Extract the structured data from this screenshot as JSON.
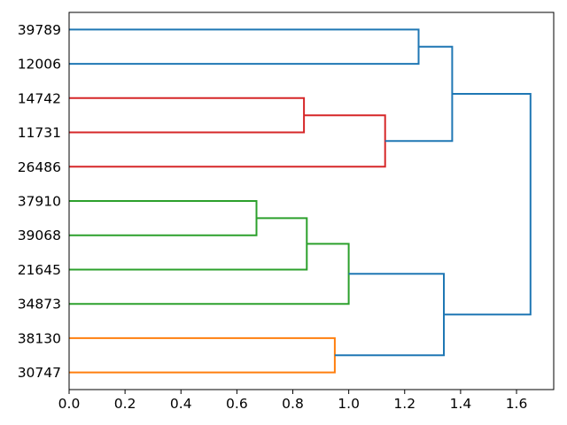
{
  "chart_data": {
    "type": "dendrogram",
    "title": "",
    "xlabel": "",
    "ylabel": "",
    "orientation": "horizontal-leaves-left",
    "grid": false,
    "legend": null,
    "leaves": [
      "39789",
      "12006",
      "14742",
      "11731",
      "26486",
      "37910",
      "39068",
      "21645",
      "34873",
      "38130",
      "30747"
    ],
    "x_ticks": [
      0.0,
      0.2,
      0.4,
      0.6,
      0.8,
      1.0,
      1.2,
      1.4,
      1.6
    ],
    "xlim": [
      0,
      1.733
    ],
    "colors": {
      "blue": "#1f77b4",
      "red": "#d62728",
      "green": "#2ca02c",
      "orange": "#ff7f0e",
      "axis": "#000000",
      "background": "#ffffff"
    },
    "links": [
      {
        "merge_height": 1.25,
        "row1": 0,
        "h1": 0,
        "row2": 1,
        "h2": 0,
        "color": "#1f77b4",
        "joins": [
          "39789",
          "12006"
        ]
      },
      {
        "merge_height": 0.84,
        "row1": 2,
        "h1": 0,
        "row2": 3,
        "h2": 0,
        "color": "#d62728",
        "joins": [
          "14742",
          "11731"
        ]
      },
      {
        "merge_height": 1.13,
        "row1": 2.5,
        "h1": 0.84,
        "row2": 4,
        "h2": 0,
        "color": "#d62728",
        "joins": [
          "14742+11731",
          "26486"
        ]
      },
      {
        "merge_height": 0.67,
        "row1": 5,
        "h1": 0,
        "row2": 6,
        "h2": 0,
        "color": "#2ca02c",
        "joins": [
          "37910",
          "39068"
        ]
      },
      {
        "merge_height": 0.85,
        "row1": 5.5,
        "h1": 0.67,
        "row2": 7,
        "h2": 0,
        "color": "#2ca02c",
        "joins": [
          "37910+39068",
          "21645"
        ]
      },
      {
        "merge_height": 1.0,
        "row1": 6.25,
        "h1": 0.85,
        "row2": 8,
        "h2": 0,
        "color": "#2ca02c",
        "joins": [
          "37910+39068+21645",
          "34873"
        ]
      },
      {
        "merge_height": 0.95,
        "row1": 9,
        "h1": 0,
        "row2": 10,
        "h2": 0,
        "color": "#ff7f0e",
        "joins": [
          "38130",
          "30747"
        ]
      },
      {
        "merge_height": 1.37,
        "row1": 0.5,
        "h1": 1.25,
        "row2": 3.25,
        "h2": 1.13,
        "color": "#1f77b4",
        "joins": [
          "blue-pair",
          "red-cluster"
        ]
      },
      {
        "merge_height": 1.34,
        "row1": 7.125,
        "h1": 1.0,
        "row2": 9.5,
        "h2": 0.95,
        "color": "#1f77b4",
        "joins": [
          "green-cluster",
          "orange-pair"
        ]
      },
      {
        "merge_height": 1.65,
        "row1": 1.875,
        "h1": 1.37,
        "row2": 8.3125,
        "h2": 1.34,
        "color": "#1f77b4",
        "joins": [
          "upper-cluster",
          "lower-cluster"
        ]
      }
    ]
  }
}
